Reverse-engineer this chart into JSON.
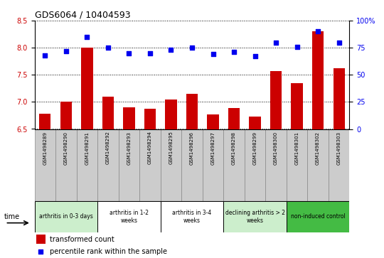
{
  "title": "GDS6064 / 10404593",
  "samples": [
    "GSM1498289",
    "GSM1498290",
    "GSM1498291",
    "GSM1498292",
    "GSM1498293",
    "GSM1498294",
    "GSM1498295",
    "GSM1498296",
    "GSM1498297",
    "GSM1498298",
    "GSM1498299",
    "GSM1498300",
    "GSM1498301",
    "GSM1498302",
    "GSM1498303"
  ],
  "red_values": [
    6.78,
    7.0,
    8.0,
    7.1,
    6.9,
    6.88,
    7.05,
    7.15,
    6.77,
    6.89,
    6.73,
    7.57,
    7.35,
    8.3,
    7.62
  ],
  "blue_values": [
    68,
    72,
    85,
    75,
    70,
    70,
    73,
    75,
    69,
    71,
    67,
    80,
    76,
    90,
    80
  ],
  "ylim_left": [
    6.5,
    8.5
  ],
  "ylim_right": [
    0,
    100
  ],
  "yticks_left": [
    6.5,
    7.0,
    7.5,
    8.0,
    8.5
  ],
  "yticks_right": [
    0,
    25,
    50,
    75,
    100
  ],
  "ytick_labels_right": [
    "0",
    "25",
    "50",
    "75",
    "100%"
  ],
  "bar_color": "#cc0000",
  "dot_color": "#0000ee",
  "grid_color": "#000000",
  "groups": [
    {
      "label": "arthritis in 0-3 days",
      "start": 0,
      "end": 3,
      "color": "#cceecc"
    },
    {
      "label": "arthritis in 1-2\nweeks",
      "start": 3,
      "end": 6,
      "color": "#ffffff"
    },
    {
      "label": "arthritis in 3-4\nweeks",
      "start": 6,
      "end": 9,
      "color": "#ffffff"
    },
    {
      "label": "declining arthritis > 2\nweeks",
      "start": 9,
      "end": 12,
      "color": "#cceecc"
    },
    {
      "label": "non-induced control",
      "start": 12,
      "end": 15,
      "color": "#44bb44"
    }
  ],
  "legend_red": "transformed count",
  "legend_blue": "percentile rank within the sample",
  "time_label": "time",
  "tick_label_color_left": "#cc0000",
  "tick_label_color_right": "#0000ee",
  "sample_box_color": "#cccccc",
  "sample_box_edge": "#888888"
}
